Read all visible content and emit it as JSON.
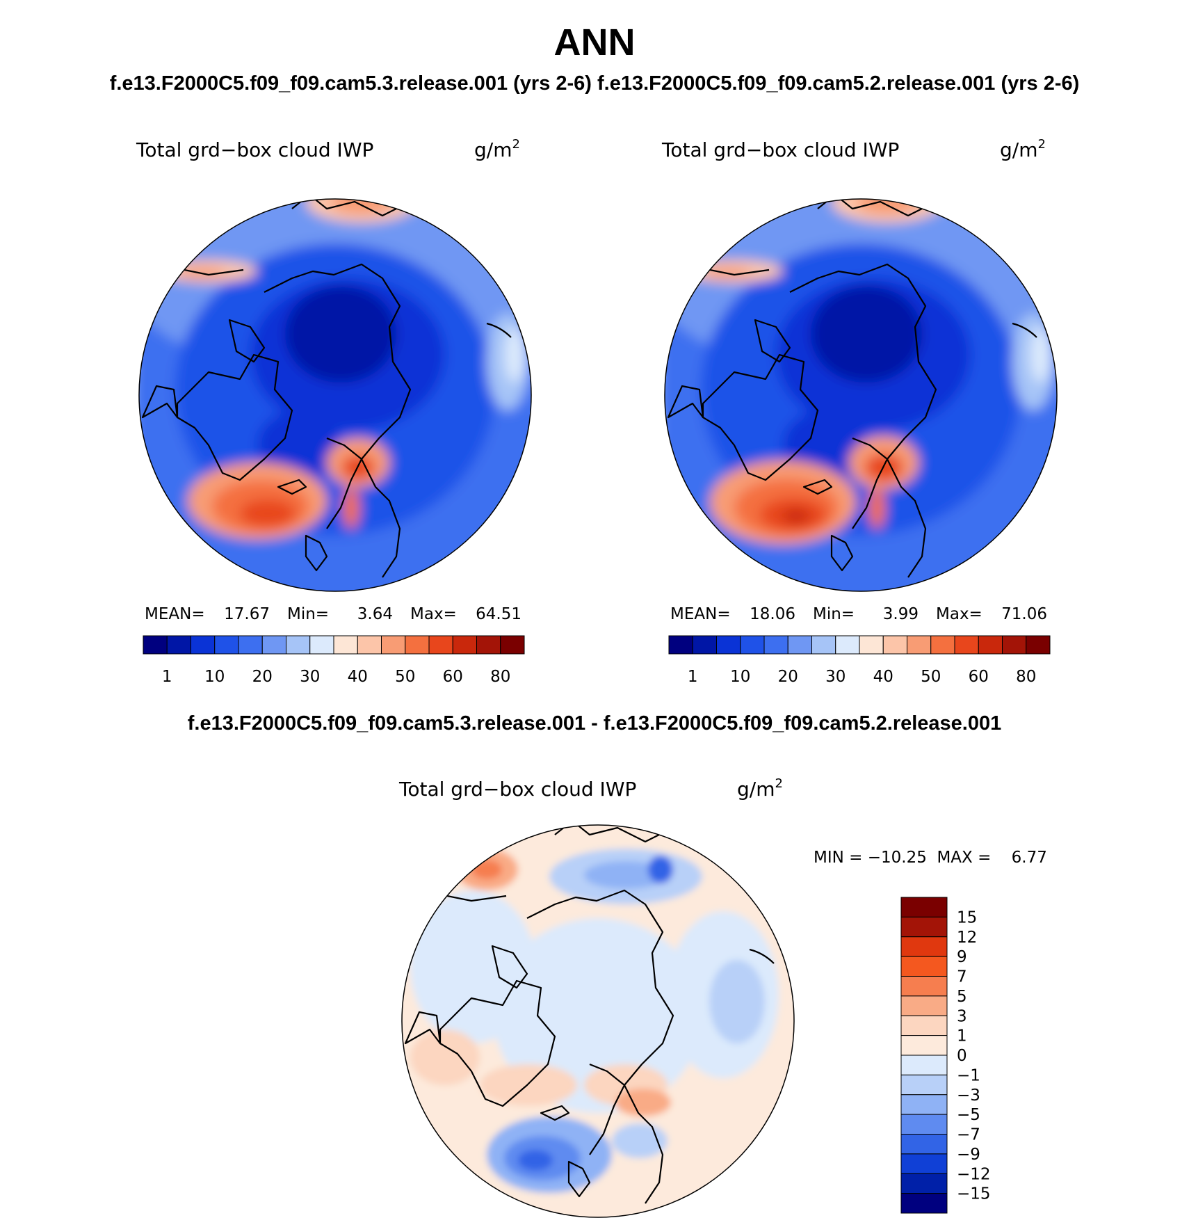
{
  "figure": {
    "title": "ANN",
    "subtitle": "f.e13.F2000C5.f09_f09.cam5.3.release.001 (yrs 2-6)  f.e13.F2000C5.f09_f09.cam5.2.release.001 (yrs 2-6)",
    "diff_title": "f.e13.F2000C5.f09_f09.cam5.3.release.001 - f.e13.F2000C5.f09_f09.cam5.2.release.001"
  },
  "panels": [
    {
      "variable": "Total grd−box cloud IWP",
      "units_base": "g/m",
      "units_exp": "2",
      "stats": {
        "mean_label": "MEAN=",
        "mean": "17.67",
        "min_label": "Min=",
        "min": "3.64",
        "max_label": "Max=",
        "max": "64.51"
      }
    },
    {
      "variable": "Total grd−box cloud IWP",
      "units_base": "g/m",
      "units_exp": "2",
      "stats": {
        "mean_label": "MEAN=",
        "mean": "18.06",
        "min_label": "Min=",
        "min": "3.99",
        "max_label": "Max=",
        "max": "71.06"
      }
    },
    {
      "variable": "Total grd−box cloud IWP",
      "units_base": "g/m",
      "units_exp": "2",
      "stats_text": "MIN = −10.25  MAX =    6.77"
    }
  ],
  "chart_data": [
    {
      "type": "heatmap",
      "projection": "north-polar-stereographic",
      "title": "Total grd−box cloud IWP",
      "units": "g/m2",
      "stats": {
        "mean": 17.67,
        "min": 3.64,
        "max": 64.51
      },
      "colorbar": {
        "orientation": "horizontal",
        "tick_labels": [
          "1",
          "10",
          "20",
          "30",
          "40",
          "50",
          "60",
          "80"
        ],
        "colors": [
          "#00007f",
          "#0016a6",
          "#0a33d6",
          "#1f52e8",
          "#3d6ff0",
          "#6f97f3",
          "#a6c4f7",
          "#dceafc",
          "#fde6d6",
          "#fcc5a9",
          "#f89c74",
          "#f4703f",
          "#e8461c",
          "#c9280c",
          "#a31407",
          "#7a0000"
        ]
      }
    },
    {
      "type": "heatmap",
      "projection": "north-polar-stereographic",
      "title": "Total grd−box cloud IWP",
      "units": "g/m2",
      "stats": {
        "mean": 18.06,
        "min": 3.99,
        "max": 71.06
      },
      "colorbar": {
        "orientation": "horizontal",
        "tick_labels": [
          "1",
          "10",
          "20",
          "30",
          "40",
          "50",
          "60",
          "80"
        ],
        "colors": [
          "#00007f",
          "#0016a6",
          "#0a33d6",
          "#1f52e8",
          "#3d6ff0",
          "#6f97f3",
          "#a6c4f7",
          "#dceafc",
          "#fde6d6",
          "#fcc5a9",
          "#f89c74",
          "#f4703f",
          "#e8461c",
          "#c9280c",
          "#a31407",
          "#7a0000"
        ]
      }
    },
    {
      "type": "heatmap",
      "projection": "north-polar-stereographic",
      "title": "Total grd−box cloud IWP",
      "units": "g/m2",
      "stats": {
        "min": -10.25,
        "max": 6.77
      },
      "colorbar": {
        "orientation": "vertical",
        "tick_labels": [
          "15",
          "12",
          "9",
          "7",
          "5",
          "3",
          "1",
          "0",
          "−1",
          "−3",
          "−5",
          "−7",
          "−9",
          "−12",
          "−15"
        ],
        "colors": [
          "#7a0000",
          "#a31407",
          "#e0380f",
          "#f4581f",
          "#f67e4f",
          "#f9ab86",
          "#fcd6c0",
          "#fdeadc",
          "#dceafc",
          "#b8d0f8",
          "#8fb2f5",
          "#5f8bf0",
          "#3264e6",
          "#1040d6",
          "#0020a8",
          "#00007f"
        ]
      }
    }
  ]
}
